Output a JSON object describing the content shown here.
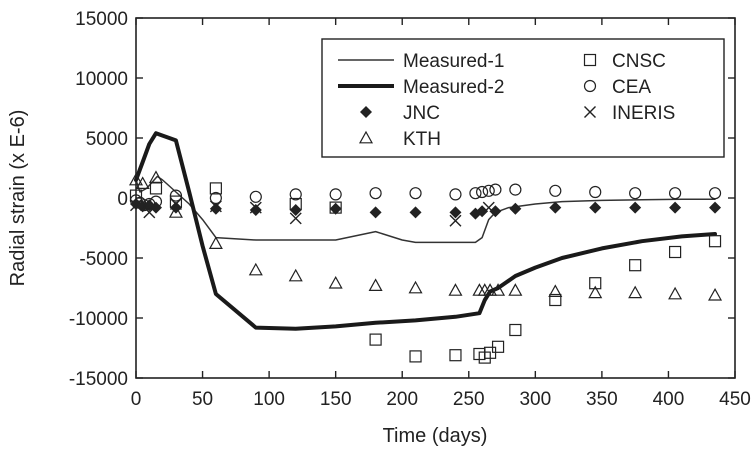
{
  "chart_data": {
    "type": "scatter",
    "title": "",
    "xlabel": "Time (days)",
    "ylabel": "Radial strain (x E-6)",
    "xlim": [
      0,
      450
    ],
    "ylim": [
      -15000,
      15000
    ],
    "xticks": [
      0,
      50,
      100,
      150,
      200,
      250,
      300,
      350,
      400,
      450
    ],
    "yticks": [
      -15000,
      -10000,
      -5000,
      0,
      5000,
      10000,
      15000
    ],
    "grid": false,
    "legend_position": "top-right",
    "series": [
      {
        "name": "Measured-1",
        "kind": "line",
        "style": "thin",
        "x": [
          0,
          3,
          8,
          12,
          16,
          20,
          25,
          30,
          40,
          50,
          60,
          90,
          120,
          150,
          180,
          200,
          210,
          240,
          255,
          260,
          265,
          270,
          280,
          300,
          320,
          350,
          380,
          410,
          435
        ],
        "y": [
          1500,
          500,
          800,
          1300,
          1800,
          1500,
          1000,
          500,
          -500,
          -1800,
          -3300,
          -3500,
          -3500,
          -3500,
          -2800,
          -3500,
          -3700,
          -3700,
          -3700,
          -3300,
          -1800,
          -1200,
          -800,
          -500,
          -300,
          -200,
          -150,
          -100,
          -100
        ]
      },
      {
        "name": "Measured-2",
        "kind": "line",
        "style": "thick",
        "x": [
          0,
          5,
          10,
          15,
          20,
          25,
          30,
          40,
          50,
          60,
          90,
          120,
          150,
          180,
          210,
          240,
          258,
          262,
          266,
          272,
          285,
          300,
          320,
          350,
          380,
          410,
          435
        ],
        "y": [
          1500,
          3000,
          4500,
          5400,
          5200,
          5000,
          4800,
          500,
          -4000,
          -8000,
          -10800,
          -10900,
          -10700,
          -10400,
          -10200,
          -9900,
          -9600,
          -8500,
          -7800,
          -7500,
          -6500,
          -5800,
          -5000,
          -4200,
          -3600,
          -3200,
          -3000
        ]
      },
      {
        "name": "JNC",
        "kind": "marker",
        "marker": "filled-diamond",
        "x": [
          0,
          5,
          10,
          15,
          30,
          60,
          90,
          120,
          150,
          180,
          210,
          240,
          255,
          260,
          270,
          285,
          315,
          345,
          375,
          405,
          435
        ],
        "y": [
          -500,
          -700,
          -600,
          -800,
          -800,
          -900,
          -1000,
          -1000,
          -900,
          -1200,
          -1200,
          -1200,
          -1300,
          -1100,
          -1100,
          -900,
          -800,
          -800,
          -800,
          -800,
          -800
        ]
      },
      {
        "name": "KTH",
        "kind": "marker",
        "marker": "open-triangle",
        "x": [
          0,
          5,
          15,
          30,
          60,
          90,
          120,
          150,
          180,
          210,
          240,
          258,
          262,
          266,
          272,
          285,
          315,
          345,
          375,
          405,
          435
        ],
        "y": [
          1500,
          1200,
          1700,
          -1200,
          -3800,
          -6000,
          -6500,
          -7100,
          -7300,
          -7500,
          -7700,
          -7700,
          -7700,
          -7700,
          -7700,
          -7700,
          -7800,
          -7900,
          -7900,
          -8000,
          -8100
        ]
      },
      {
        "name": "CNSC",
        "kind": "marker",
        "marker": "open-square",
        "x": [
          0,
          15,
          30,
          60,
          120,
          150,
          180,
          210,
          240,
          258,
          262,
          266,
          272,
          285,
          315,
          345,
          375,
          405,
          435
        ],
        "y": [
          200,
          800,
          -300,
          800,
          -500,
          -800,
          -11800,
          -13200,
          -13100,
          -13000,
          -13300,
          -12900,
          -12400,
          -11000,
          -8500,
          -7100,
          -5600,
          -4500,
          -3600
        ]
      },
      {
        "name": "CEA",
        "kind": "marker",
        "marker": "open-circle",
        "x": [
          0,
          3,
          6,
          10,
          15,
          30,
          60,
          90,
          120,
          150,
          180,
          210,
          240,
          255,
          260,
          265,
          270,
          285,
          315,
          345,
          375,
          405,
          435
        ],
        "y": [
          -200,
          -400,
          -600,
          -500,
          -300,
          200,
          0,
          100,
          300,
          300,
          400,
          400,
          300,
          400,
          500,
          600,
          700,
          700,
          600,
          500,
          400,
          400,
          400
        ]
      },
      {
        "name": "INERIS",
        "kind": "marker",
        "marker": "cross",
        "x": [
          0,
          10,
          30,
          60,
          90,
          120,
          240,
          265
        ],
        "y": [
          -600,
          -1200,
          -500,
          -700,
          -800,
          -1700,
          -1900,
          -800
        ]
      }
    ]
  }
}
